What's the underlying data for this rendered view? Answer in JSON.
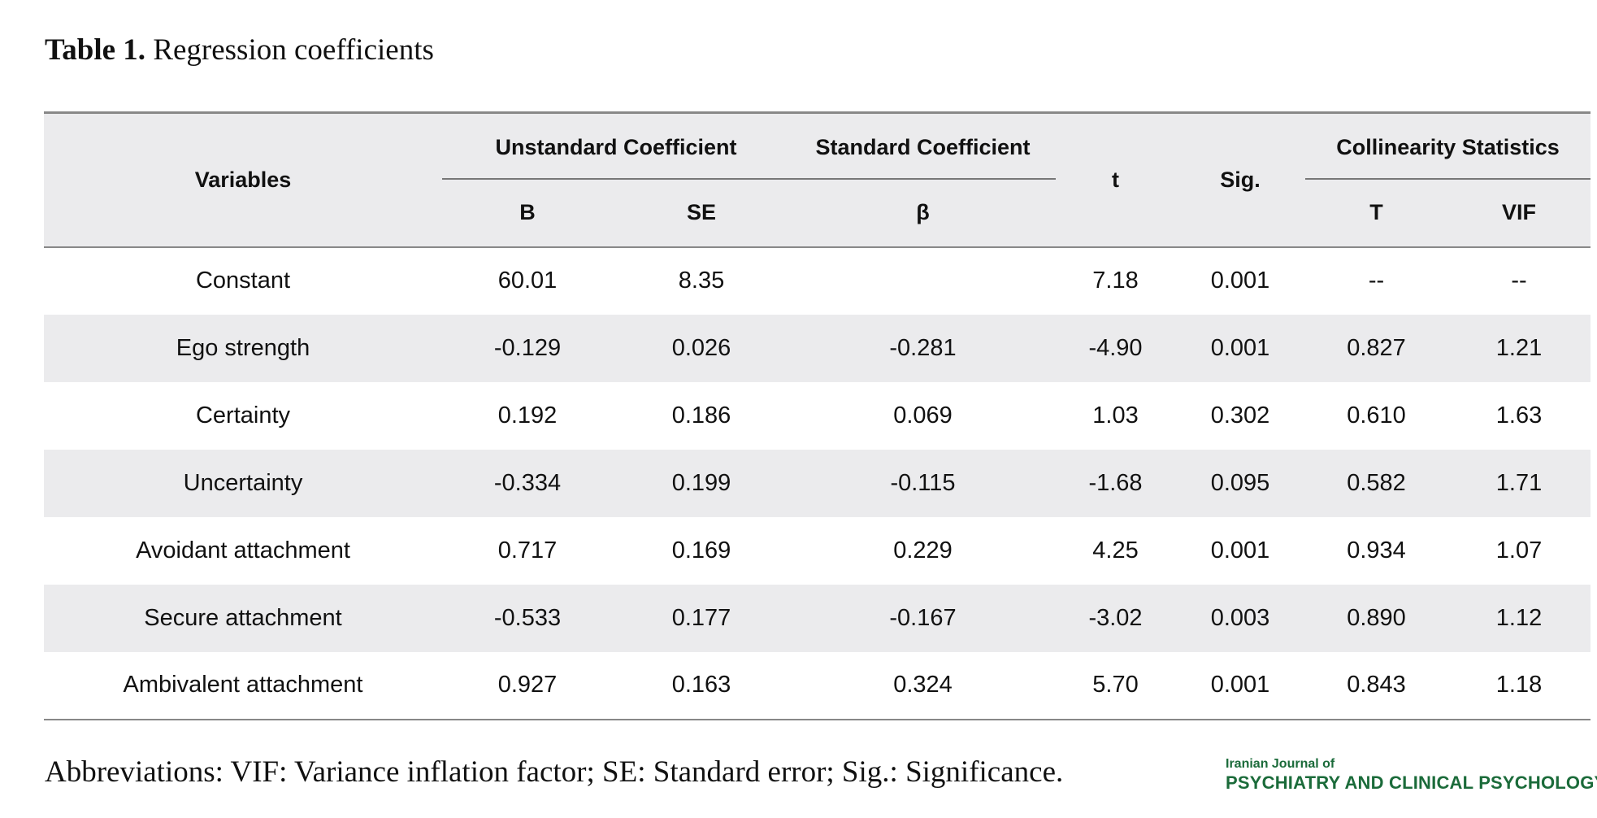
{
  "caption": {
    "label": "Table 1.",
    "text": "Regression coefficients"
  },
  "headers": {
    "variables": "Variables",
    "unstandard": "Unstandard Coefficient",
    "standard": "Standard Coefficient",
    "t": "t",
    "sig": "Sig.",
    "collinearity": "Collinearity Statistics",
    "b": "B",
    "se": "SE",
    "beta": "β",
    "tol": "T",
    "vif": "VIF"
  },
  "rows": [
    {
      "variable": "Constant",
      "b": "60.01",
      "se": "8.35",
      "beta": "",
      "t": "7.18",
      "sig": "0.001",
      "tol": "--",
      "vif": "--"
    },
    {
      "variable": "Ego strength",
      "b": "-0.129",
      "se": "0.026",
      "beta": "-0.281",
      "t": "-4.90",
      "sig": "0.001",
      "tol": "0.827",
      "vif": "1.21"
    },
    {
      "variable": "Certainty",
      "b": "0.192",
      "se": "0.186",
      "beta": "0.069",
      "t": "1.03",
      "sig": "0.302",
      "tol": "0.610",
      "vif": "1.63"
    },
    {
      "variable": "Uncertainty",
      "b": "-0.334",
      "se": "0.199",
      "beta": "-0.115",
      "t": "-1.68",
      "sig": "0.095",
      "tol": "0.582",
      "vif": "1.71"
    },
    {
      "variable": "Avoidant attachment",
      "b": "0.717",
      "se": "0.169",
      "beta": "0.229",
      "t": "4.25",
      "sig": "0.001",
      "tol": "0.934",
      "vif": "1.07"
    },
    {
      "variable": "Secure attachment",
      "b": "-0.533",
      "se": "0.177",
      "beta": "-0.167",
      "t": "-3.02",
      "sig": "0.003",
      "tol": "0.890",
      "vif": "1.12"
    },
    {
      "variable": "Ambivalent attachment",
      "b": "0.927",
      "se": "0.163",
      "beta": "0.324",
      "t": "5.70",
      "sig": "0.001",
      "tol": "0.843",
      "vif": "1.18"
    }
  ],
  "footnote": "Abbreviations: VIF: Variance inflation factor; SE: Standard error; Sig.: Significance.",
  "journal": {
    "line1": "Iranian Journal of",
    "line2": "PSYCHIATRY AND CLINICAL PSYCHOLOGY",
    "color": "#1b6b3a"
  }
}
